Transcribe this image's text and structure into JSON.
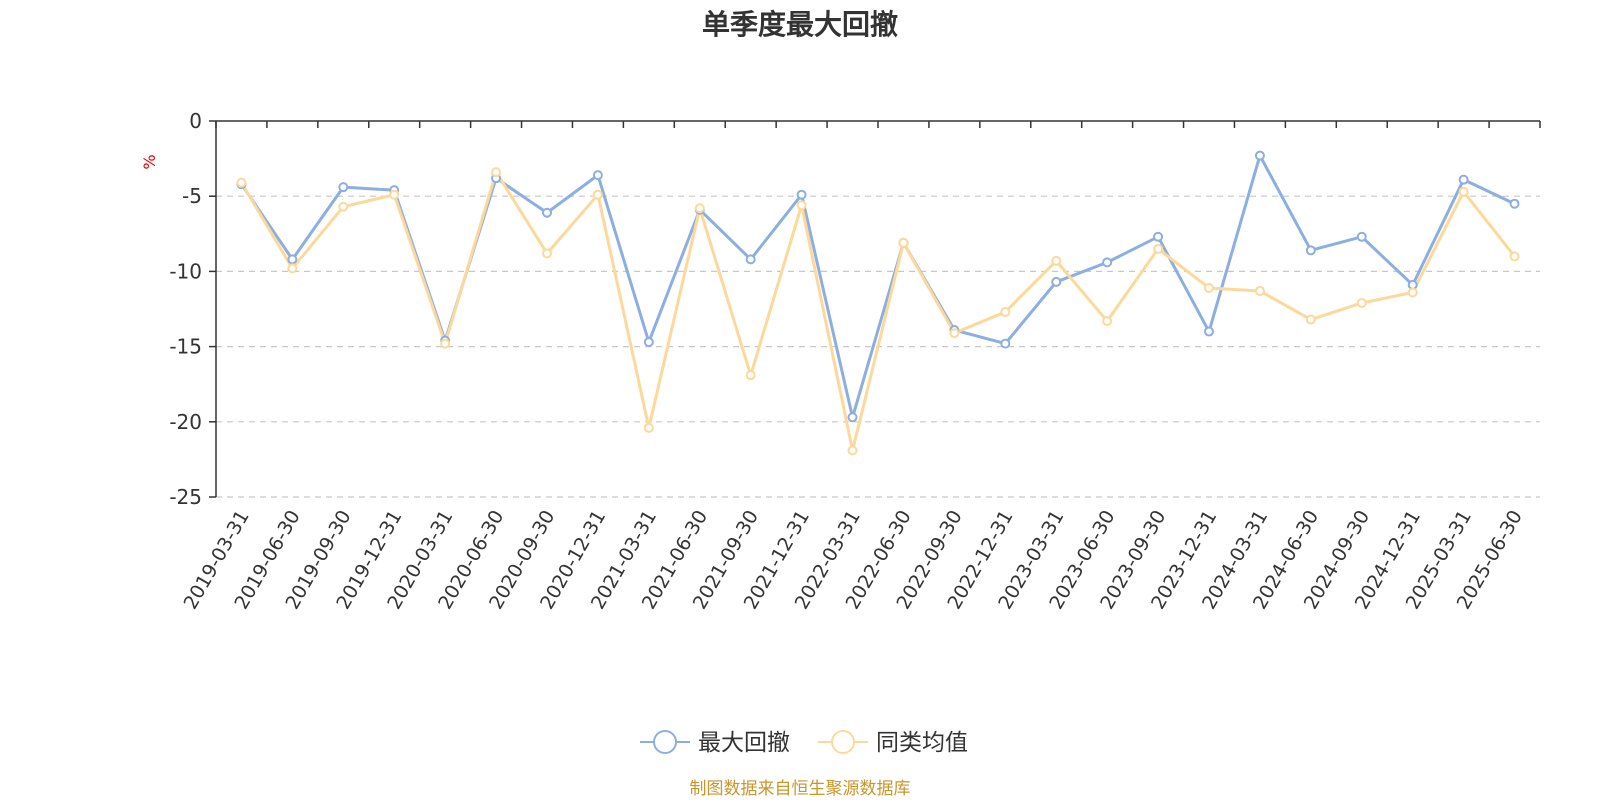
{
  "chart_data": {
    "type": "line",
    "title": "单季度最大回撤",
    "ylabel": "%",
    "xlabel": "",
    "ylim": [
      -25,
      0
    ],
    "yticks": [
      0,
      -5,
      -10,
      -15,
      -20,
      -25
    ],
    "grid": true,
    "legend_position": "bottom",
    "categories": [
      "2019-03-31",
      "2019-06-30",
      "2019-09-30",
      "2019-12-31",
      "2020-03-31",
      "2020-06-30",
      "2020-09-30",
      "2020-12-31",
      "2021-03-31",
      "2021-06-30",
      "2021-09-30",
      "2021-12-31",
      "2022-03-31",
      "2022-06-30",
      "2022-09-30",
      "2022-12-31",
      "2023-03-31",
      "2023-06-30",
      "2023-09-30",
      "2023-12-31",
      "2024-03-31",
      "2024-06-30",
      "2024-09-30",
      "2024-12-31",
      "2025-03-31",
      "2025-06-30"
    ],
    "series": [
      {
        "name": "最大回撤",
        "color": "#8caee0",
        "values": [
          -4.2,
          -9.2,
          -4.4,
          -4.6,
          -14.6,
          -3.8,
          -6.1,
          -3.6,
          -14.7,
          -5.9,
          -9.2,
          -4.9,
          -19.7,
          -8.1,
          -13.9,
          -14.8,
          -10.7,
          -9.4,
          -7.7,
          -14.0,
          -2.3,
          -8.6,
          -7.7,
          -10.9,
          -3.9,
          -5.5
        ]
      },
      {
        "name": "同类均值",
        "color": "#fcd99a",
        "values": [
          -4.1,
          -9.8,
          -5.7,
          -4.9,
          -14.8,
          -3.4,
          -8.8,
          -4.9,
          -20.4,
          -5.8,
          -16.9,
          -5.6,
          -21.9,
          -8.1,
          -14.1,
          -12.7,
          -9.3,
          -13.3,
          -8.5,
          -11.1,
          -11.3,
          -13.2,
          -12.1,
          -11.4,
          -4.7,
          -9.0
        ]
      }
    ]
  },
  "footer": {
    "source": "制图数据来自恒生聚源数据库"
  }
}
